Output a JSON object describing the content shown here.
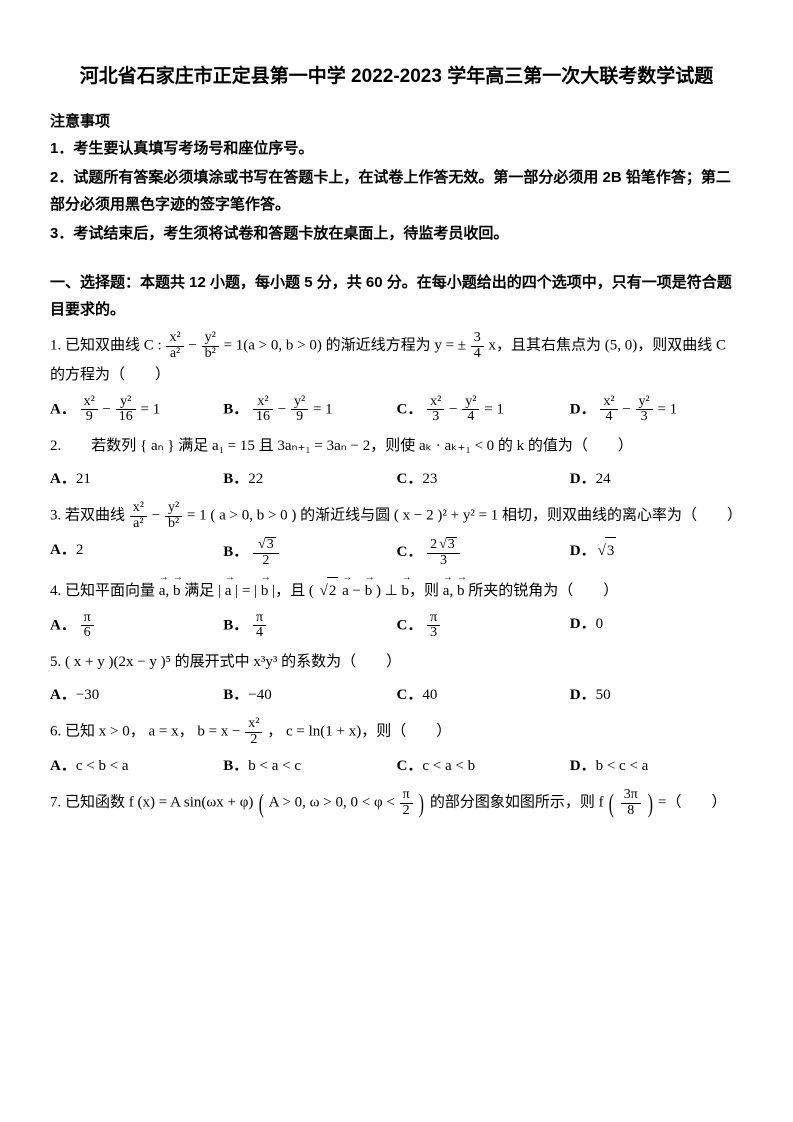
{
  "title": "河北省石家庄市正定县第一中学 2022-2023 学年高三第一次大联考数学试题",
  "notice_head": "注意事项",
  "notices": [
    "1．考生要认真填写考场号和座位序号。",
    "2．试题所有答案必须填涂或书写在答题卡上，在试卷上作答无效。第一部分必须用 2B 铅笔作答；第二部分必须用黑色字迹的签字笔作答。",
    "3．考试结束后，考生须将试卷和答题卡放在桌面上，待监考员收回。"
  ],
  "section1_head": "一、选择题：本题共 12 小题，每小题 5 分，共 60 分。在每小题给出的四个选项中，只有一项是符合题目要求的。",
  "q1": {
    "stem_pre": "1.  已知双曲线 C : ",
    "eq_left": "x²",
    "eq_a": "a²",
    "eq_right": "y²",
    "eq_b": "b²",
    "stem_mid1": " = 1(a > 0, b > 0) 的渐近线方程为 y = ± ",
    "slope_n": "3",
    "slope_d": "4",
    "stem_mid2": " x，且其右焦点为 (5, 0)，则双曲线 C 的方程为（　　）",
    "A_n1": "x²",
    "A_d1": "9",
    "A_n2": "y²",
    "A_d2": "16",
    "B_n1": "x²",
    "B_d1": "16",
    "B_n2": "y²",
    "B_d2": "9",
    "C_n1": "x²",
    "C_d1": "3",
    "C_n2": "y²",
    "C_d2": "4",
    "D_n1": "x²",
    "D_d1": "4",
    "D_n2": "y²",
    "D_d2": "3",
    "eq1": " = 1"
  },
  "q2": {
    "stem": "2.　　若数列 { aₙ } 满足 a₁ = 15 且 3aₙ₊₁ = 3aₙ − 2，则使 aₖ · aₖ₊₁ < 0 的 k 的值为（　　）",
    "A": "21",
    "B": "22",
    "C": "23",
    "D": "24"
  },
  "q3": {
    "stem_pre": "3.  若双曲线 ",
    "n1": "x²",
    "d1": "a²",
    "n2": "y²",
    "d2": "b²",
    "stem_mid": " = 1 ( a > 0, b > 0 ) 的渐近线与圆 ( x − 2 )² + y² = 1 相切，则双曲线的离心率为（　　）",
    "A": "2",
    "B_n": "√3",
    "B_d": "2",
    "C_n": "2√3",
    "C_d": "3",
    "D": "√3"
  },
  "q4": {
    "stem": "4.  已知平面向量 a, b 满足 | a | = | b |，且 ( √2 a − b ) ⊥ b，则 a, b 所夹的锐角为（　　）",
    "A_n": "π",
    "A_d": "6",
    "B_n": "π",
    "B_d": "4",
    "C_n": "π",
    "C_d": "3",
    "D": "0"
  },
  "q5": {
    "stem": "5.  ( x + y )(2x − y )⁵ 的展开式中 x³y³ 的系数为（　　）",
    "A": "−30",
    "B": "−40",
    "C": "40",
    "D": "50"
  },
  "q6": {
    "stem_pre": "6.  已知 x > 0， a = x， b = x − ",
    "b_n": "x²",
    "b_d": "2",
    "stem_post": "， c = ln(1 + x)，则（　　）",
    "A": "c < b < a",
    "B": "b < a < c",
    "C": "c < a < b",
    "D": "b < c < a"
  },
  "q7": {
    "stem_pre": "7.  已知函数 f (x) = A sin(ωx + φ) ",
    "cond": "A > 0, ω > 0, 0 < φ < ",
    "phi_n": "π",
    "phi_d": "2",
    "stem_mid": " 的部分图象如图所示，则 f ",
    "arg_n": "3π",
    "arg_d": "8",
    "stem_post": " =（　　）"
  },
  "labels": {
    "A": "A．",
    "B": "B．",
    "C": "C．",
    "D": "D．"
  },
  "colors": {
    "text": "#000000",
    "bg": "#ffffff"
  }
}
